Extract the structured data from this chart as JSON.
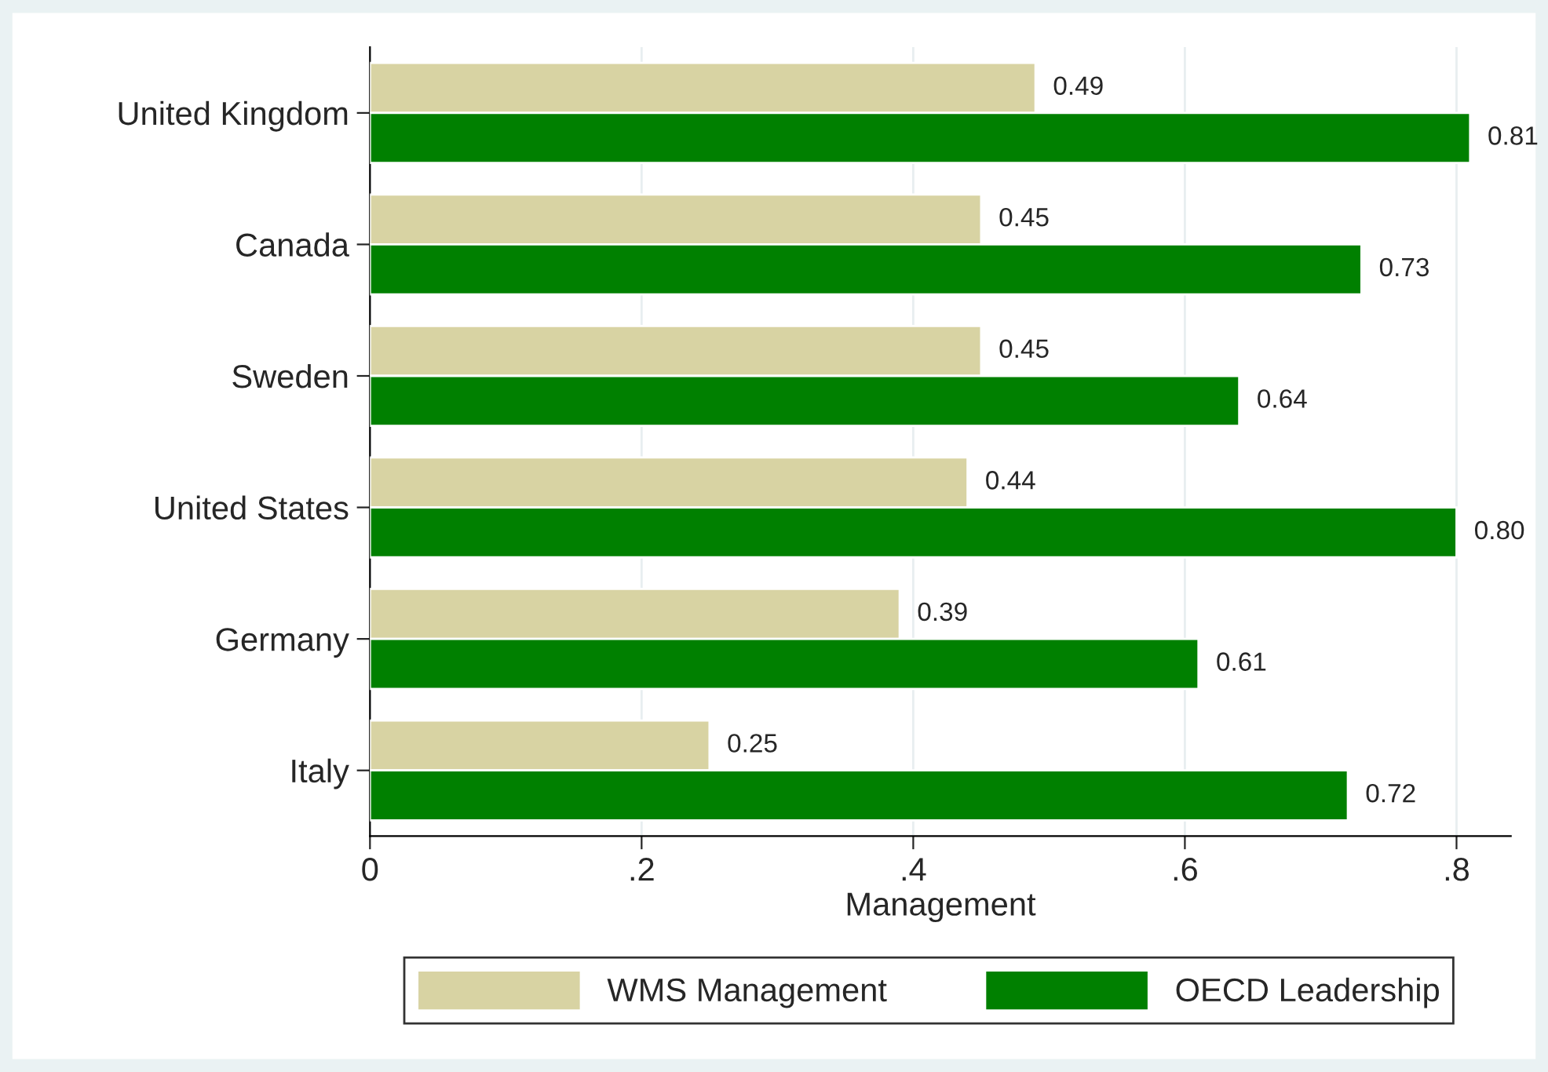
{
  "chart_data": {
    "type": "bar",
    "orientation": "horizontal",
    "xlabel": "Management",
    "categories": [
      "United Kingdom",
      "Canada",
      "Sweden",
      "United States",
      "Germany",
      "Italy"
    ],
    "series": [
      {
        "name": "WMS Management",
        "color": "#d8d3a3",
        "values": [
          0.49,
          0.45,
          0.45,
          0.44,
          0.39,
          0.25
        ],
        "value_labels": [
          "0.49",
          "0.45",
          "0.45",
          "0.44",
          "0.39",
          "0.25"
        ]
      },
      {
        "name": "OECD Leadership",
        "color": "#008000",
        "values": [
          0.81,
          0.73,
          0.64,
          0.8,
          0.61,
          0.72
        ],
        "value_labels": [
          "0.81",
          "0.73",
          "0.64",
          "0.80",
          "0.61",
          "0.72"
        ]
      }
    ],
    "xlim": [
      0,
      0.84
    ],
    "xticks": [
      0,
      {
        "value": 0.2,
        "label": ".2"
      },
      {
        "value": 0.4,
        "label": ".4"
      },
      {
        "value": 0.6,
        "label": ".6"
      },
      {
        "value": 0.8,
        "label": ".8"
      }
    ],
    "grid": "x",
    "legend": "bottom"
  }
}
